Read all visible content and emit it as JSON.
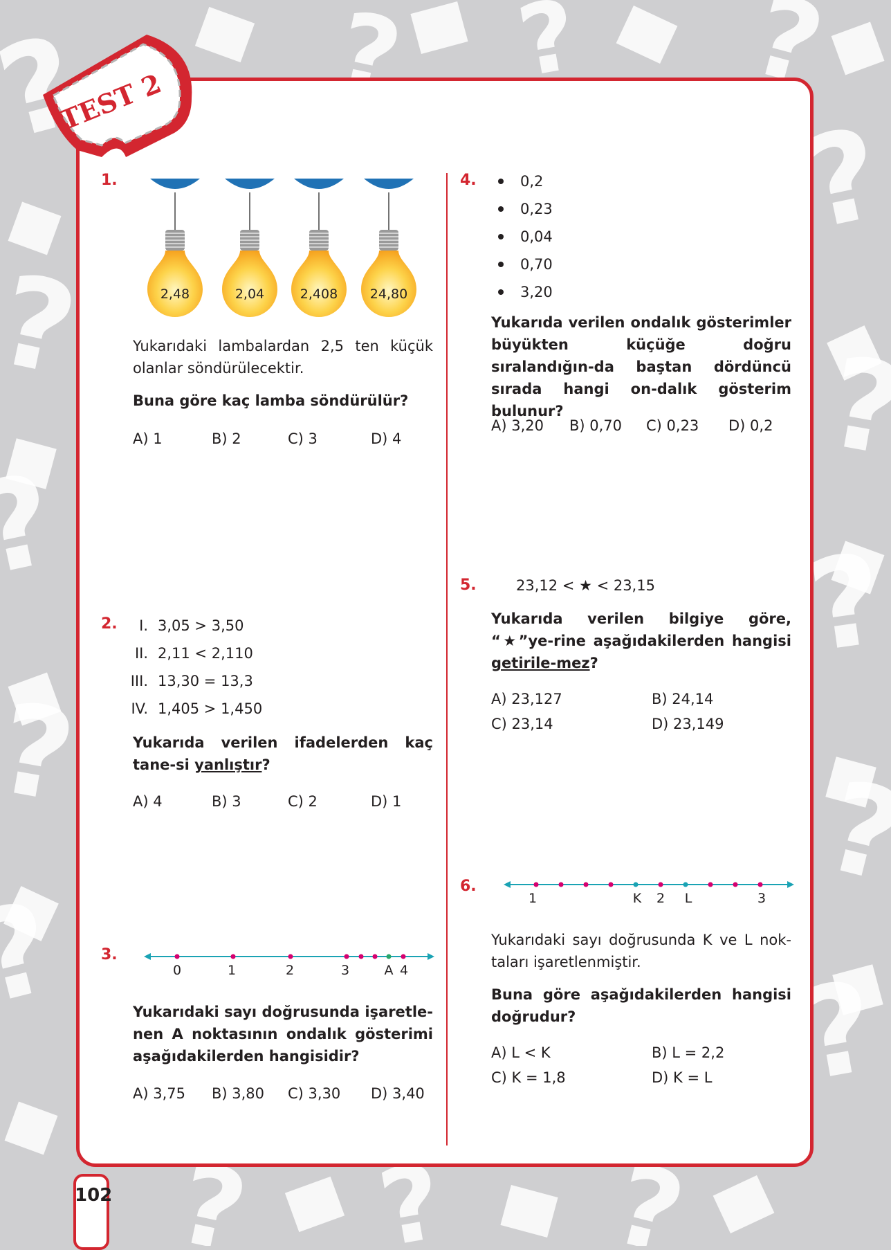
{
  "badge": {
    "text": "TEST 2"
  },
  "page_number": "102",
  "q1": {
    "number": "1.",
    "bulbs": [
      "2,48",
      "2,04",
      "2,408",
      "24,80"
    ],
    "text": "Yukarıdaki lambalardan 2,5 ten küçük olanlar söndürülecektir.",
    "question": "Buna göre kaç lamba söndürülür?",
    "options": [
      "A) 1",
      "B) 2",
      "C) 3",
      "D) 4"
    ]
  },
  "q2": {
    "number": "2.",
    "statements": [
      {
        "roman": "I.",
        "text": "3,05 > 3,50"
      },
      {
        "roman": "II.",
        "text": "2,11 < 2,110"
      },
      {
        "roman": "III.",
        "text": "13,30 = 13,3"
      },
      {
        "roman": "IV.",
        "text": "1,405 > 1,450"
      }
    ],
    "question_pre": "Yukarıda verilen ifadelerden kaç tane-si ",
    "question_underlined": "yanlıştır",
    "question_post": "?",
    "options": [
      "A) 4",
      "B) 3",
      "C) 2",
      "D) 1"
    ]
  },
  "q3": {
    "number": "3.",
    "line_labels": [
      "0",
      "1",
      "2",
      "3",
      "A",
      "4"
    ],
    "question": "Yukarıdaki sayı doğrusunda işaretle-nen A noktasının ondalık gösterimi aşağıdakilerden hangisidir?",
    "options": [
      "A) 3,75",
      "B) 3,80",
      "C) 3,30",
      "D) 3,40"
    ]
  },
  "q4": {
    "number": "4.",
    "items": [
      "0,2",
      "0,23",
      "0,04",
      "0,70",
      "3,20"
    ],
    "question": "Yukarıda verilen ondalık gösterimler büyükten küçüğe doğru sıralandığın-da baştan dördüncü sırada hangi on-dalık gösterim bulunur?",
    "options": [
      "A) 3,20",
      "B) 0,70",
      "C) 0,23",
      "D) 0,2"
    ]
  },
  "q5": {
    "number": "5.",
    "inequality": "23,12 < ★ < 23,15",
    "question_pre": "Yukarıda verilen bilgiye göre, “★”ye-rine aşağıdakilerden hangisi ",
    "question_underlined": "getirile-mez",
    "question_post": "?",
    "options": [
      "A) 23,127",
      "B) 24,14",
      "C) 23,14",
      "D) 23,149"
    ]
  },
  "q6": {
    "number": "6.",
    "line_labels": [
      "1",
      "K",
      "2",
      "L",
      "3"
    ],
    "text": "Yukarıdaki sayı doğrusunda K ve L nok-taları işaretlenmiştir.",
    "question": "Buna göre aşağıdakilerden hangisi doğrudur?",
    "options": [
      "A) L < K",
      "B) L = 2,2",
      "C) K = 1,8",
      "D) K = L"
    ]
  },
  "colors": {
    "accent": "#d32630",
    "teal": "#1aa3b4",
    "magenta": "#d6006f",
    "green": "#2aa66a",
    "shade": "#2072b5"
  }
}
